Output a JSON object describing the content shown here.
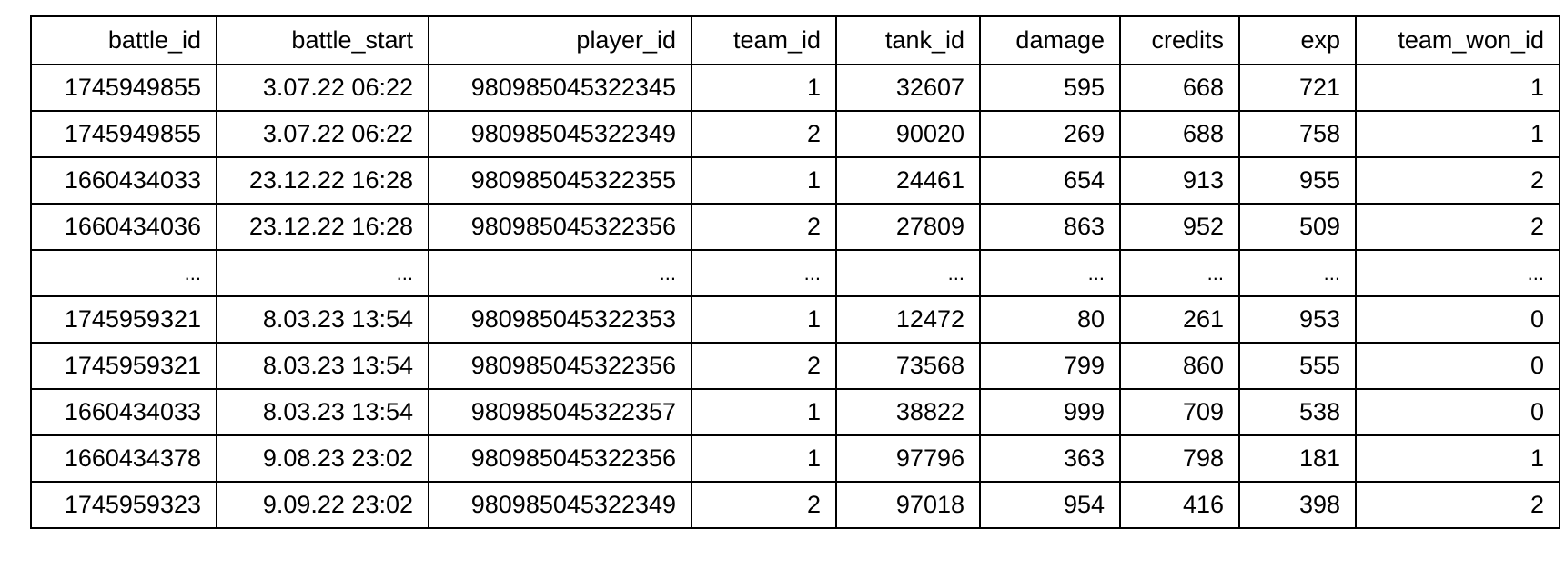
{
  "table": {
    "headers": [
      "battle_id",
      "battle_start",
      "player_id",
      "team_id",
      "tank_id",
      "damage",
      "credits",
      "exp",
      "team_won_id"
    ],
    "rows": [
      [
        "1745949855",
        "3.07.22 06:22",
        "980985045322345",
        "1",
        "32607",
        "595",
        "668",
        "721",
        "1"
      ],
      [
        "1745949855",
        "3.07.22 06:22",
        "980985045322349",
        "2",
        "90020",
        "269",
        "688",
        "758",
        "1"
      ],
      [
        "1660434033",
        "23.12.22 16:28",
        "980985045322355",
        "1",
        "24461",
        "654",
        "913",
        "955",
        "2"
      ],
      [
        "1660434036",
        "23.12.22 16:28",
        "980985045322356",
        "2",
        "27809",
        "863",
        "952",
        "509",
        "2"
      ],
      [
        "...",
        "...",
        "...",
        "...",
        "...",
        "...",
        "...",
        "...",
        "..."
      ],
      [
        "1745959321",
        "8.03.23 13:54",
        "980985045322353",
        "1",
        "12472",
        "80",
        "261",
        "953",
        "0"
      ],
      [
        "1745959321",
        "8.03.23 13:54",
        "980985045322356",
        "2",
        "73568",
        "799",
        "860",
        "555",
        "0"
      ],
      [
        "1660434033",
        "8.03.23 13:54",
        "980985045322357",
        "1",
        "38822",
        "999",
        "709",
        "538",
        "0"
      ],
      [
        "1660434378",
        "9.08.23 23:02",
        "980985045322356",
        "1",
        "97796",
        "363",
        "798",
        "181",
        "1"
      ],
      [
        "1745959323",
        "9.09.22 23:02",
        "980985045322349",
        "2",
        "97018",
        "954",
        "416",
        "398",
        "2"
      ]
    ]
  }
}
